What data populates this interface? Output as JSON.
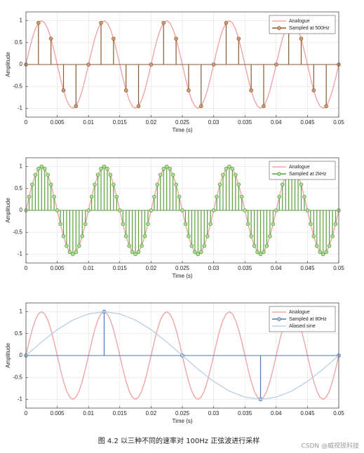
{
  "chart_data": [
    {
      "type": "stem",
      "xlabel": "Time (s)",
      "ylabel": "Amplitude",
      "xlim": [
        0,
        0.05
      ],
      "ylim": [
        -1.2,
        1.2
      ],
      "xticks": [
        0,
        0.005,
        0.01,
        0.015,
        0.02,
        0.025,
        0.03,
        0.035,
        0.04,
        0.045,
        0.05
      ],
      "yticks": [
        -1,
        -0.5,
        0,
        0.5,
        1
      ],
      "grid": true,
      "legend": "upper right",
      "series": [
        {
          "name": "Analogue",
          "style": "line",
          "color": "#f2a5a5",
          "x": [
            0,
            0.0005,
            0.001,
            0.0015,
            0.002,
            0.0025,
            0.003,
            0.0035,
            0.004,
            0.0045,
            0.005,
            0.0055,
            0.006,
            0.0065,
            0.007,
            0.0075,
            0.008,
            0.0085,
            0.009,
            0.0095,
            0.01,
            0.0105,
            0.011,
            0.0115,
            0.012,
            0.0125,
            0.013,
            0.0135,
            0.014,
            0.0145,
            0.015,
            0.0155,
            0.016,
            0.0165,
            0.017,
            0.0175,
            0.018,
            0.0185,
            0.019,
            0.0195,
            0.02,
            0.0205,
            0.021,
            0.0215,
            0.022,
            0.0225,
            0.023,
            0.0235,
            0.024,
            0.0245,
            0.025,
            0.0255,
            0.026,
            0.0265,
            0.027,
            0.0275,
            0.028,
            0.0285,
            0.029,
            0.0295,
            0.03,
            0.0305,
            0.031,
            0.0315,
            0.032,
            0.0325,
            0.033,
            0.0335,
            0.034,
            0.0345,
            0.035,
            0.0355,
            0.036,
            0.0365,
            0.037,
            0.0375,
            0.038,
            0.0385,
            0.039,
            0.0395,
            0.04,
            0.0405,
            0.041,
            0.0415,
            0.042,
            0.0425,
            0.043,
            0.0435,
            0.044,
            0.0445,
            0.045,
            0.0455,
            0.046,
            0.0465,
            0.047,
            0.0475,
            0.048,
            0.0485,
            0.049,
            0.0495,
            0.05
          ],
          "values": [
            0,
            0.31,
            0.59,
            0.81,
            0.95,
            1,
            0.95,
            0.81,
            0.59,
            0.31,
            0,
            -0.31,
            -0.59,
            -0.81,
            -0.95,
            -1,
            -0.95,
            -0.81,
            -0.59,
            -0.31,
            0,
            0.31,
            0.59,
            0.81,
            0.95,
            1,
            0.95,
            0.81,
            0.59,
            0.31,
            0,
            -0.31,
            -0.59,
            -0.81,
            -0.95,
            -1,
            -0.95,
            -0.81,
            -0.59,
            -0.31,
            0,
            0.31,
            0.59,
            0.81,
            0.95,
            1,
            0.95,
            0.81,
            0.59,
            0.31,
            0,
            -0.31,
            -0.59,
            -0.81,
            -0.95,
            -1,
            -0.95,
            -0.81,
            -0.59,
            -0.31,
            0,
            0.31,
            0.59,
            0.81,
            0.95,
            1,
            0.95,
            0.81,
            0.59,
            0.31,
            0,
            -0.31,
            -0.59,
            -0.81,
            -0.95,
            -1,
            -0.95,
            -0.81,
            -0.59,
            -0.31,
            0,
            0.31,
            0.59,
            0.81,
            0.95,
            1,
            0.95,
            0.81,
            0.59,
            0.31,
            0,
            -0.31,
            -0.59,
            -0.81,
            -0.95,
            -1,
            -0.95,
            -0.81,
            -0.59,
            -0.31,
            0
          ]
        },
        {
          "name": "Sampled at 500Hz",
          "style": "stem",
          "color": "#8c5a2e",
          "marker_fill": "#c9a27a",
          "x": [
            0,
            0.002,
            0.004,
            0.006,
            0.008,
            0.01,
            0.012,
            0.014,
            0.016,
            0.018,
            0.02,
            0.022,
            0.024,
            0.026,
            0.028,
            0.03,
            0.032,
            0.034,
            0.036,
            0.038,
            0.04,
            0.042,
            0.044,
            0.046,
            0.048,
            0.05
          ],
          "values": [
            0,
            0.95,
            0.59,
            -0.59,
            -0.95,
            0,
            0.95,
            0.59,
            -0.59,
            -0.95,
            0,
            0.95,
            0.59,
            -0.59,
            -0.95,
            0,
            0.95,
            0.59,
            -0.59,
            -0.95,
            0,
            0.95,
            0.59,
            -0.59,
            -0.95,
            0
          ]
        }
      ]
    },
    {
      "type": "stem",
      "xlabel": "Time (s)",
      "ylabel": "Amplitude",
      "xlim": [
        0,
        0.05
      ],
      "ylim": [
        -1.2,
        1.2
      ],
      "xticks": [
        0,
        0.005,
        0.01,
        0.015,
        0.02,
        0.025,
        0.03,
        0.035,
        0.04,
        0.045,
        0.05
      ],
      "yticks": [
        -1,
        -0.5,
        0,
        0.5,
        1
      ],
      "grid": true,
      "legend": "upper right",
      "series": [
        {
          "name": "Analogue",
          "style": "line",
          "color": "#f2a5a5",
          "x": [
            0,
            0.0005,
            0.001,
            0.0015,
            0.002,
            0.0025,
            0.003,
            0.0035,
            0.004,
            0.0045,
            0.005,
            0.0055,
            0.006,
            0.0065,
            0.007,
            0.0075,
            0.008,
            0.0085,
            0.009,
            0.0095,
            0.01,
            0.0105,
            0.011,
            0.0115,
            0.012,
            0.0125,
            0.013,
            0.0135,
            0.014,
            0.0145,
            0.015,
            0.0155,
            0.016,
            0.0165,
            0.017,
            0.0175,
            0.018,
            0.0185,
            0.019,
            0.0195,
            0.02,
            0.0205,
            0.021,
            0.0215,
            0.022,
            0.0225,
            0.023,
            0.0235,
            0.024,
            0.0245,
            0.025,
            0.0255,
            0.026,
            0.0265,
            0.027,
            0.0275,
            0.028,
            0.0285,
            0.029,
            0.0295,
            0.03,
            0.0305,
            0.031,
            0.0315,
            0.032,
            0.0325,
            0.033,
            0.0335,
            0.034,
            0.0345,
            0.035,
            0.0355,
            0.036,
            0.0365,
            0.037,
            0.0375,
            0.038,
            0.0385,
            0.039,
            0.0395,
            0.04,
            0.0405,
            0.041,
            0.0415,
            0.042,
            0.0425,
            0.043,
            0.0435,
            0.044,
            0.0445,
            0.045,
            0.0455,
            0.046,
            0.0465,
            0.047,
            0.0475,
            0.048,
            0.0485,
            0.049,
            0.0495,
            0.05
          ],
          "values": [
            0,
            0.31,
            0.59,
            0.81,
            0.95,
            1,
            0.95,
            0.81,
            0.59,
            0.31,
            0,
            -0.31,
            -0.59,
            -0.81,
            -0.95,
            -1,
            -0.95,
            -0.81,
            -0.59,
            -0.31,
            0,
            0.31,
            0.59,
            0.81,
            0.95,
            1,
            0.95,
            0.81,
            0.59,
            0.31,
            0,
            -0.31,
            -0.59,
            -0.81,
            -0.95,
            -1,
            -0.95,
            -0.81,
            -0.59,
            -0.31,
            0,
            0.31,
            0.59,
            0.81,
            0.95,
            1,
            0.95,
            0.81,
            0.59,
            0.31,
            0,
            -0.31,
            -0.59,
            -0.81,
            -0.95,
            -1,
            -0.95,
            -0.81,
            -0.59,
            -0.31,
            0,
            0.31,
            0.59,
            0.81,
            0.95,
            1,
            0.95,
            0.81,
            0.59,
            0.31,
            0,
            -0.31,
            -0.59,
            -0.81,
            -0.95,
            -1,
            -0.95,
            -0.81,
            -0.59,
            -0.31,
            0,
            0.31,
            0.59,
            0.81,
            0.95,
            1,
            0.95,
            0.81,
            0.59,
            0.31,
            0,
            -0.31,
            -0.59,
            -0.81,
            -0.95,
            -1,
            -0.95,
            -0.81,
            -0.59,
            -0.31,
            0
          ]
        },
        {
          "name": "Sampled at 2kHz",
          "style": "stem",
          "color": "#5a9e3a",
          "marker_fill": "#b5dca0",
          "x": [
            0,
            0.0005,
            0.001,
            0.0015,
            0.002,
            0.0025,
            0.003,
            0.0035,
            0.004,
            0.0045,
            0.005,
            0.0055,
            0.006,
            0.0065,
            0.007,
            0.0075,
            0.008,
            0.0085,
            0.009,
            0.0095,
            0.01,
            0.0105,
            0.011,
            0.0115,
            0.012,
            0.0125,
            0.013,
            0.0135,
            0.014,
            0.0145,
            0.015,
            0.0155,
            0.016,
            0.0165,
            0.017,
            0.0175,
            0.018,
            0.0185,
            0.019,
            0.0195,
            0.02,
            0.0205,
            0.021,
            0.0215,
            0.022,
            0.0225,
            0.023,
            0.0235,
            0.024,
            0.0245,
            0.025,
            0.0255,
            0.026,
            0.0265,
            0.027,
            0.0275,
            0.028,
            0.0285,
            0.029,
            0.0295,
            0.03,
            0.0305,
            0.031,
            0.0315,
            0.032,
            0.0325,
            0.033,
            0.0335,
            0.034,
            0.0345,
            0.035,
            0.0355,
            0.036,
            0.0365,
            0.037,
            0.0375,
            0.038,
            0.0385,
            0.039,
            0.0395,
            0.04,
            0.0405,
            0.041,
            0.0415,
            0.042,
            0.0425,
            0.043,
            0.0435,
            0.044,
            0.0445,
            0.045,
            0.0455,
            0.046,
            0.0465,
            0.047,
            0.0475,
            0.048,
            0.0485,
            0.049,
            0.0495,
            0.05
          ],
          "values": [
            0,
            0.31,
            0.59,
            0.81,
            0.95,
            1,
            0.95,
            0.81,
            0.59,
            0.31,
            0,
            -0.31,
            -0.59,
            -0.81,
            -0.95,
            -1,
            -0.95,
            -0.81,
            -0.59,
            -0.31,
            0,
            0.31,
            0.59,
            0.81,
            0.95,
            1,
            0.95,
            0.81,
            0.59,
            0.31,
            0,
            -0.31,
            -0.59,
            -0.81,
            -0.95,
            -1,
            -0.95,
            -0.81,
            -0.59,
            -0.31,
            0,
            0.31,
            0.59,
            0.81,
            0.95,
            1,
            0.95,
            0.81,
            0.59,
            0.31,
            0,
            -0.31,
            -0.59,
            -0.81,
            -0.95,
            -1,
            -0.95,
            -0.81,
            -0.59,
            -0.31,
            0,
            0.31,
            0.59,
            0.81,
            0.95,
            1,
            0.95,
            0.81,
            0.59,
            0.31,
            0,
            -0.31,
            -0.59,
            -0.81,
            -0.95,
            -1,
            -0.95,
            -0.81,
            -0.59,
            -0.31,
            0,
            0.31,
            0.59,
            0.81,
            0.95,
            1,
            0.95,
            0.81,
            0.59,
            0.31,
            0,
            -0.31,
            -0.59,
            -0.81,
            -0.95,
            -1,
            -0.95,
            -0.81,
            -0.59,
            -0.31,
            0
          ]
        }
      ]
    },
    {
      "type": "stem",
      "xlabel": "Time (s)",
      "ylabel": "Amplitude",
      "xlim": [
        0,
        0.05
      ],
      "ylim": [
        -1.2,
        1.2
      ],
      "xticks": [
        0,
        0.005,
        0.01,
        0.015,
        0.02,
        0.025,
        0.03,
        0.035,
        0.04,
        0.045,
        0.05
      ],
      "yticks": [
        -1,
        -0.5,
        0,
        0.5,
        1
      ],
      "grid": true,
      "legend": "upper right",
      "series": [
        {
          "name": "Analogue",
          "style": "line",
          "color": "#f2a5a5",
          "x": [
            0,
            0.0005,
            0.001,
            0.0015,
            0.002,
            0.0025,
            0.003,
            0.0035,
            0.004,
            0.0045,
            0.005,
            0.0055,
            0.006,
            0.0065,
            0.007,
            0.0075,
            0.008,
            0.0085,
            0.009,
            0.0095,
            0.01,
            0.0105,
            0.011,
            0.0115,
            0.012,
            0.0125,
            0.013,
            0.0135,
            0.014,
            0.0145,
            0.015,
            0.0155,
            0.016,
            0.0165,
            0.017,
            0.0175,
            0.018,
            0.0185,
            0.019,
            0.0195,
            0.02,
            0.0205,
            0.021,
            0.0215,
            0.022,
            0.0225,
            0.023,
            0.0235,
            0.024,
            0.0245,
            0.025,
            0.0255,
            0.026,
            0.0265,
            0.027,
            0.0275,
            0.028,
            0.0285,
            0.029,
            0.0295,
            0.03,
            0.0305,
            0.031,
            0.0315,
            0.032,
            0.0325,
            0.033,
            0.0335,
            0.034,
            0.0345,
            0.035,
            0.0355,
            0.036,
            0.0365,
            0.037,
            0.0375,
            0.038,
            0.0385,
            0.039,
            0.0395,
            0.04,
            0.0405,
            0.041,
            0.0415,
            0.042,
            0.0425,
            0.043,
            0.0435,
            0.044,
            0.0445,
            0.045,
            0.0455,
            0.046,
            0.0465,
            0.047,
            0.0475,
            0.048,
            0.0485,
            0.049,
            0.0495,
            0.05
          ],
          "values": [
            0,
            0.31,
            0.59,
            0.81,
            0.95,
            1,
            0.95,
            0.81,
            0.59,
            0.31,
            0,
            -0.31,
            -0.59,
            -0.81,
            -0.95,
            -1,
            -0.95,
            -0.81,
            -0.59,
            -0.31,
            0,
            0.31,
            0.59,
            0.81,
            0.95,
            1,
            0.95,
            0.81,
            0.59,
            0.31,
            0,
            -0.31,
            -0.59,
            -0.81,
            -0.95,
            -1,
            -0.95,
            -0.81,
            -0.59,
            -0.31,
            0,
            0.31,
            0.59,
            0.81,
            0.95,
            1,
            0.95,
            0.81,
            0.59,
            0.31,
            0,
            -0.31,
            -0.59,
            -0.81,
            -0.95,
            -1,
            -0.95,
            -0.81,
            -0.59,
            -0.31,
            0,
            0.31,
            0.59,
            0.81,
            0.95,
            1,
            0.95,
            0.81,
            0.59,
            0.31,
            0,
            -0.31,
            -0.59,
            -0.81,
            -0.95,
            -1,
            -0.95,
            -0.81,
            -0.59,
            -0.31,
            0,
            0.31,
            0.59,
            0.81,
            0.95,
            1,
            0.95,
            0.81,
            0.59,
            0.31,
            0,
            -0.31,
            -0.59,
            -0.81,
            -0.95,
            -1,
            -0.95,
            -0.81,
            -0.59,
            -0.31,
            0
          ]
        },
        {
          "name": "Sampled at 80Hz",
          "style": "stem",
          "color": "#4a78b0",
          "marker_fill": "#a9c4e4",
          "x": [
            0,
            0.0125,
            0.025,
            0.0375,
            0.05
          ],
          "values": [
            0,
            1,
            0,
            -1,
            0
          ]
        },
        {
          "name": "Aliased sine",
          "style": "line",
          "color": "#bcd0e6",
          "x": [
            0,
            0.0025,
            0.005,
            0.0075,
            0.01,
            0.0125,
            0.015,
            0.0175,
            0.02,
            0.0225,
            0.025,
            0.0275,
            0.03,
            0.0325,
            0.035,
            0.0375,
            0.04,
            0.0425,
            0.045,
            0.0475,
            0.05
          ],
          "values": [
            0,
            0.31,
            0.59,
            0.81,
            0.95,
            1,
            0.95,
            0.81,
            0.59,
            0.31,
            0,
            -0.31,
            -0.59,
            -0.81,
            -0.95,
            -1,
            -0.95,
            -0.81,
            -0.59,
            -0.31,
            0
          ]
        }
      ]
    }
  ],
  "caption": "图 4.2  以三种不同的速率对 100Hz 正弦波进行采样",
  "watermark": "CSDN @威视锐科技"
}
